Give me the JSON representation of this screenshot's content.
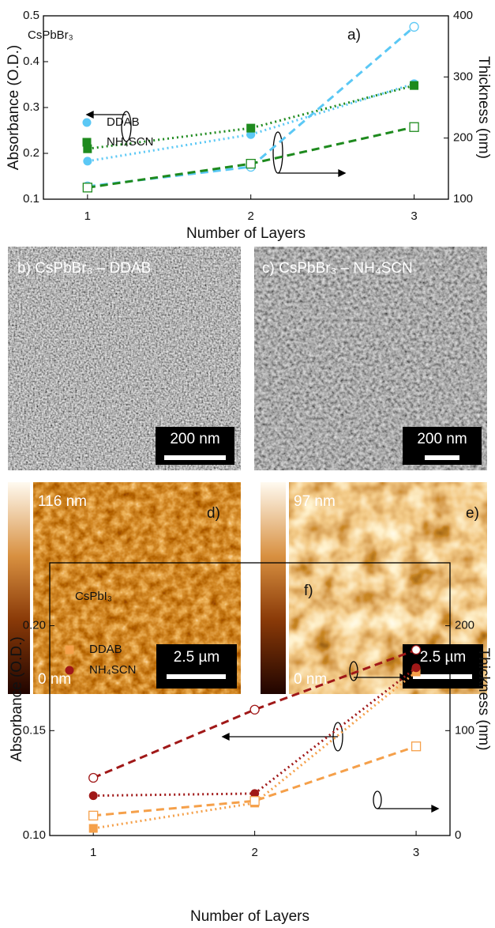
{
  "chart_data": [
    {
      "type": "line",
      "xlabel": "Number of Layers",
      "ylabel": "Absorbance (O.D.)",
      "y2label": "Thickness (nm)",
      "annotations": [
        "CsPbBr₃",
        "a)"
      ],
      "x": [
        1,
        2,
        3
      ],
      "xlim": [
        0.73,
        3.21
      ],
      "xticks": [
        1,
        2,
        3
      ],
      "ylim": [
        0.1,
        0.5
      ],
      "yticks": [
        0.1,
        0.2,
        0.3,
        0.4,
        0.5
      ],
      "y2lim": [
        100,
        400
      ],
      "y2ticks": [
        100,
        200,
        300,
        400
      ],
      "grid": false,
      "series": [
        {
          "name": "DDAB",
          "color": "#5bc8f5",
          "marker": "circle",
          "filled": true,
          "dash": "dotted",
          "values": [
            0.183,
            0.241,
            0.352
          ]
        },
        {
          "name": "NH₄SCN",
          "color": "#1e8a1e",
          "marker": "square",
          "filled": true,
          "dash": "dotted",
          "values": [
            0.21,
            0.255,
            0.348
          ]
        },
        {
          "color": "#5bc8f5",
          "marker": "circle",
          "filled": false,
          "dash": "dashed",
          "axis": "y2",
          "values": [
            121,
            153,
            382
          ]
        },
        {
          "color": "#1e8a1e",
          "marker": "square",
          "filled": false,
          "dash": "dashed",
          "axis": "y2",
          "values": [
            119,
            158,
            218
          ]
        }
      ]
    },
    {
      "type": "line",
      "xlabel": "Number of Layers",
      "ylabel": "Absorbance (O.D.)",
      "y2label": "Thickness (nm)",
      "annotations": [
        "CsPbI₃",
        "f)"
      ],
      "x": [
        1,
        2,
        3
      ],
      "xlim": [
        0.73,
        3.21
      ],
      "xticks": [
        1,
        2,
        3
      ],
      "ylim": [
        0.1,
        0.23
      ],
      "yticks": [
        {
          "value": 0.1,
          "label": "0.10"
        },
        0.15,
        {
          "value": 0.2,
          "label": "0.20"
        }
      ],
      "y2lim": [
        0,
        260
      ],
      "y2ticks": [
        0,
        100,
        200
      ],
      "grid": false,
      "series": [
        {
          "name": "DDAB",
          "color": "#f5a04a",
          "marker": "square",
          "filled": true,
          "dash": "dotted",
          "values": [
            0.1034,
            0.1155,
            0.178
          ]
        },
        {
          "name": "NH₄SCN",
          "color": "#a01818",
          "marker": "circle",
          "filled": true,
          "dash": "dotted",
          "values": [
            0.119,
            0.12,
            0.18
          ]
        },
        {
          "color": "#f5a04a",
          "marker": "square",
          "filled": false,
          "dash": "dashed",
          "axis": "y2",
          "values": [
            19,
            33,
            85
          ]
        },
        {
          "color": "#a01818",
          "marker": "circle",
          "filled": false,
          "dash": "dashed",
          "axis": "y2",
          "values": [
            55,
            120,
            177
          ]
        }
      ]
    }
  ],
  "image_panels": [
    {
      "label": "b) CsPbBr₃ – DDAB",
      "scale_bar": "200 nm"
    },
    {
      "label": "c) CsPbBr₃ – NH₄SCN",
      "scale_bar": "200 nm"
    },
    {
      "label": "d)",
      "max": "116 nm",
      "min": "0 nm",
      "scale_bar": "2.5 µm"
    },
    {
      "label": "e)",
      "max": "97 nm",
      "min": "0 nm",
      "scale_bar": "2.5 µm"
    }
  ]
}
